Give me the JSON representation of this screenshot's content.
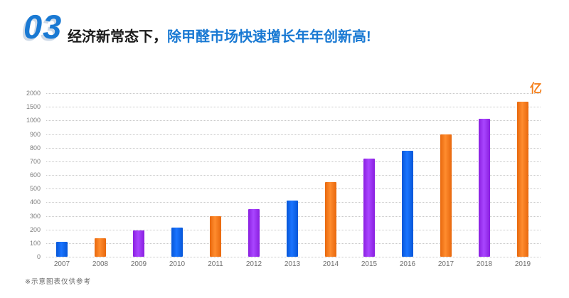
{
  "header": {
    "section_number": "03",
    "title_black": "经济新常态下，",
    "title_blue": "除甲醛市场快速增长年年创新高!"
  },
  "chart_data": {
    "type": "bar",
    "title": "",
    "xlabel": "",
    "ylabel": "",
    "unit_label": "亿",
    "categories": [
      "2007",
      "2008",
      "2009",
      "2010",
      "2011",
      "2012",
      "2013",
      "2014",
      "2015",
      "2016",
      "2017",
      "2018",
      "2019"
    ],
    "values": [
      110,
      135,
      195,
      215,
      300,
      350,
      410,
      550,
      720,
      775,
      900,
      1050,
      1700
    ],
    "bar_colors": [
      "blue",
      "orange",
      "purple",
      "blue",
      "orange",
      "purple",
      "blue",
      "orange",
      "purple",
      "blue",
      "orange",
      "purple",
      "orange"
    ],
    "palette": {
      "blue": {
        "edge": "#0757d8",
        "mid": "#1a74ff"
      },
      "orange": {
        "edge": "#e8680d",
        "mid": "#ff8c2e"
      },
      "purple": {
        "edge": "#8a1fe0",
        "mid": "#a946ff"
      }
    },
    "yticks": [
      0,
      100,
      200,
      300,
      400,
      500,
      600,
      700,
      800,
      900,
      1000,
      1500,
      2000
    ],
    "ylim": [
      0,
      2000
    ],
    "axis_note": "y axis non-linear: 13 equally spaced ticks (100 steps to 1000, then 1500, 2000)",
    "grid": "horizontal dotted",
    "legend": "none"
  },
  "footnote": "※示意图表仅供参考"
}
